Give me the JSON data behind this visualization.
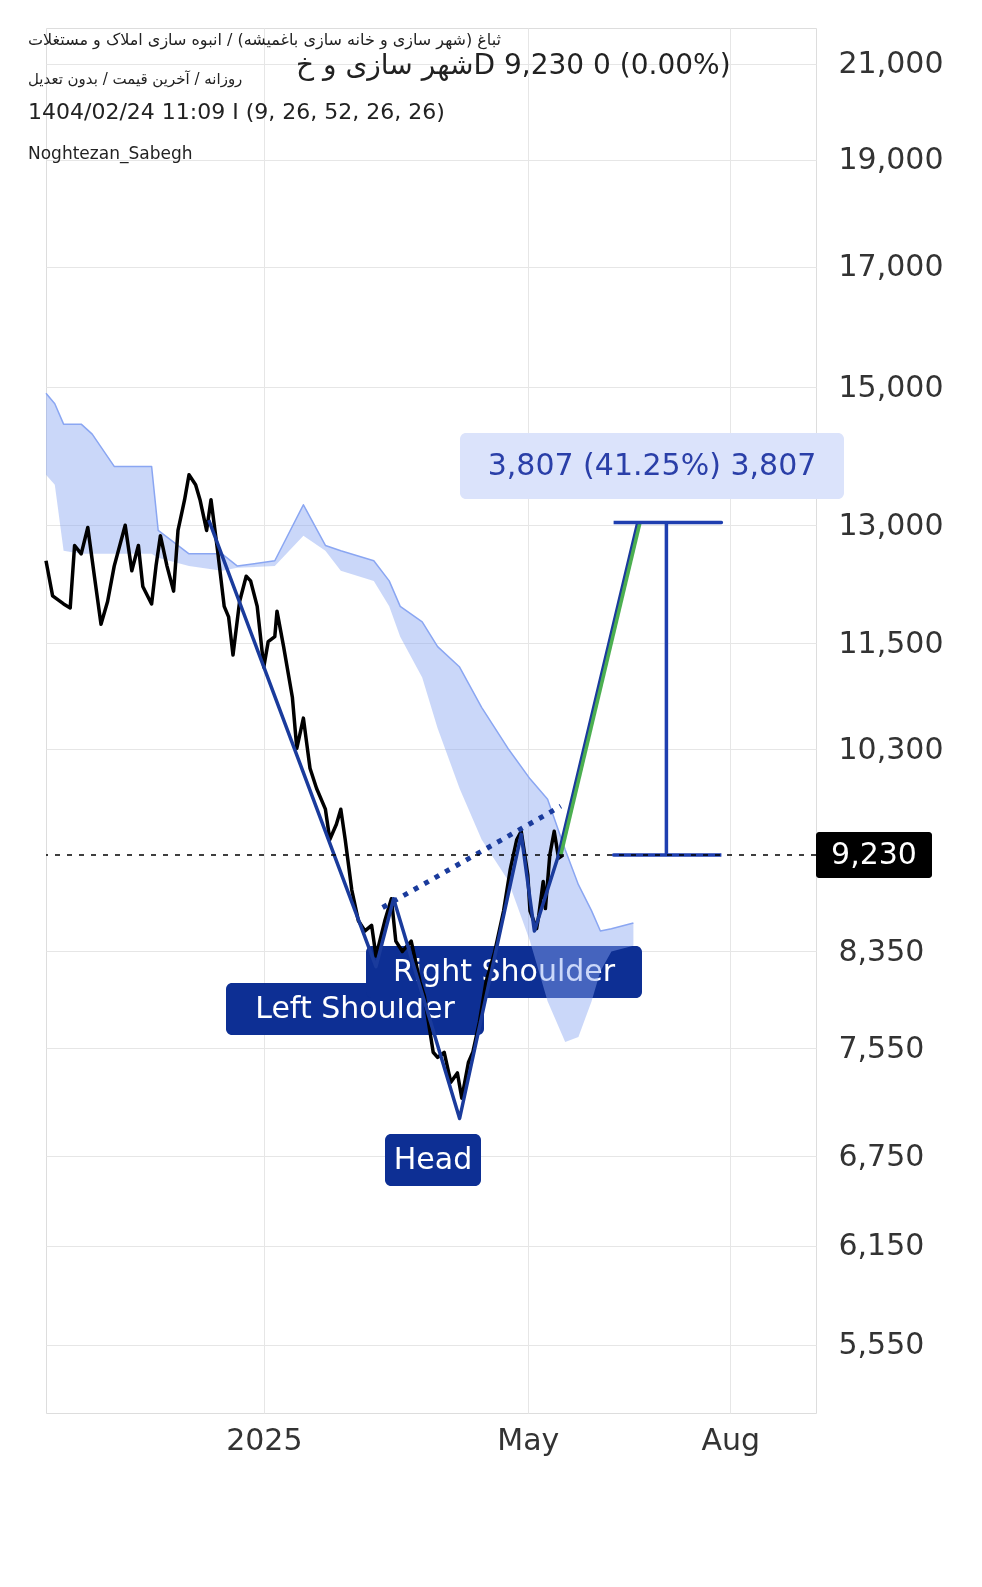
{
  "chart_data": {
    "type": "line",
    "title": "ثباغ (شهر سازی و خانه سازی باغمیشه) / انبوه سازی املاک و مستغلات",
    "subtitle": "شهر سازی و خD  9,230  0 (0.00%)",
    "annotations": [
      "روزانه / آخرین قیمت / بدون تعدیل",
      "1404/02/24 11:09 I (9, 26, 52, 26, 26)",
      "Noghtezan_Sabegh",
      "Left Shoulder",
      "Right Shoulder",
      "Head",
      "3,807 (41.25%) 3,807"
    ],
    "log": "y",
    "grid": true,
    "xlim": [
      "2024-09-24",
      "2025-09-09"
    ],
    "xticks": [
      "2025",
      {
        "value": "2025-05",
        "label": "May"
      },
      {
        "value": "2025-08",
        "label": "Aug"
      }
    ],
    "ylim": [
      5170,
      21790
    ],
    "yticks": [
      {
        "value": 5550,
        "label": "5,550"
      },
      {
        "value": 6150,
        "label": "6,150"
      },
      {
        "value": 6750,
        "label": "6,750"
      },
      {
        "value": 7550,
        "label": "7,550"
      },
      {
        "value": 8350,
        "label": "8,350"
      },
      {
        "value": 10300,
        "label": "10,300"
      },
      {
        "value": 11500,
        "label": "11,500"
      },
      {
        "value": 13000,
        "label": "13,000"
      },
      {
        "value": 15000,
        "label": "15,000"
      },
      {
        "value": 17000,
        "label": "17,000"
      },
      {
        "value": 19000,
        "label": "19,000"
      },
      {
        "value": 21000,
        "label": "21,000"
      }
    ],
    "ref_lines": [
      {
        "axis": "y",
        "value": 9230,
        "label": "9,230",
        "color": "#000000",
        "line_style": "dotted"
      }
    ],
    "series": [
      {
        "color": "#8aa6f2",
        "x": [
          "2024-09-24",
          "2024-09-28",
          "2024-10-02",
          "2024-10-10",
          "2024-10-15",
          "2024-10-25",
          "2024-11-11",
          "2024-11-14",
          "2024-11-28",
          "2024-12-13",
          "2024-12-20",
          "2025-01-06",
          "2025-01-19",
          "2025-01-29",
          "2025-02-05",
          "2025-02-20",
          "2025-02-27",
          "2025-03-04",
          "2025-03-14",
          "2025-03-21",
          "2025-03-31",
          "2025-04-10",
          "2025-04-22",
          "2025-05-02",
          "2025-05-10",
          "2025-05-18",
          "2025-05-24",
          "2025-05-30",
          "2025-06-03",
          "2025-06-08",
          "2025-06-18"
        ],
        "values": [
          14910,
          14750,
          14440,
          14440,
          14290,
          13820,
          13820,
          12930,
          12620,
          12620,
          12460,
          12530,
          13280,
          12730,
          12660,
          12530,
          12270,
          11950,
          11760,
          11460,
          11220,
          10760,
          10310,
          9990,
          9780,
          9280,
          8950,
          8710,
          8530,
          8550,
          8600
        ],
        "lower": [
          13700,
          13560,
          12660,
          12620,
          12620,
          12620,
          12620,
          12570,
          12460,
          12400,
          12440,
          12460,
          12860,
          12660,
          12400,
          12270,
          11950,
          11580,
          11100,
          10530,
          9890,
          9380,
          8990,
          8440,
          7930,
          7600,
          7640,
          7930,
          8180,
          8350,
          8400
        ],
        "upper": [
          14910,
          14750,
          14440,
          14440,
          14290,
          13820,
          13820,
          12930,
          12620,
          12620,
          12460,
          12530,
          13280,
          12730,
          12660,
          12530,
          12270,
          11950,
          11760,
          11460,
          11220,
          10760,
          10310,
          9990,
          9780,
          9280,
          8950,
          8710,
          8530,
          8550,
          8600
        ]
      },
      {
        "color": "#000000",
        "x": [
          "2024-09-24",
          "2024-09-27",
          "2024-10-02",
          "2024-10-05",
          "2024-10-07",
          "2024-10-10",
          "2024-10-13",
          "2024-10-16",
          "2024-10-19",
          "2024-10-22",
          "2024-10-25",
          "2024-10-30",
          "2024-11-02",
          "2024-11-05",
          "2024-11-07",
          "2024-11-11",
          "2024-11-13",
          "2024-11-15",
          "2024-11-18",
          "2024-11-21",
          "2024-11-23",
          "2024-11-26",
          "2024-11-28",
          "2024-12-01",
          "2024-12-03",
          "2024-12-06",
          "2024-12-08",
          "2024-12-11",
          "2024-12-14",
          "2024-12-16",
          "2024-12-18",
          "2024-12-21",
          "2024-12-24",
          "2024-12-26",
          "2024-12-29",
          "2025-01-01",
          "2025-01-03",
          "2025-01-06",
          "2025-01-07",
          "2025-01-10",
          "2025-01-14",
          "2025-01-16",
          "2025-01-19",
          "2025-01-22",
          "2025-01-25",
          "2025-01-29",
          "2025-01-31",
          "2025-02-03",
          "2025-02-05",
          "2025-02-07",
          "2025-02-10",
          "2025-02-13",
          "2025-02-16",
          "2025-02-19",
          "2025-02-21",
          "2025-02-25",
          "2025-02-28",
          "2025-03-02",
          "2025-03-05",
          "2025-03-09",
          "2025-03-13",
          "2025-03-15",
          "2025-03-19",
          "2025-03-21",
          "2025-03-24",
          "2025-03-27",
          "2025-03-30",
          "2025-04-01",
          "2025-04-04",
          "2025-04-06",
          "2025-04-09",
          "2025-04-12",
          "2025-04-16",
          "2025-04-20",
          "2025-04-23",
          "2025-04-26",
          "2025-04-28",
          "2025-05-01",
          "2025-05-02",
          "2025-05-05",
          "2025-05-06",
          "2025-05-08",
          "2025-05-09",
          "2025-05-11",
          "2025-05-13",
          "2025-05-15",
          "2025-05-17"
        ],
        "values": [
          12530,
          12080,
          11980,
          11930,
          12730,
          12620,
          12970,
          12330,
          11730,
          12010,
          12460,
          13000,
          12400,
          12730,
          12200,
          11980,
          12460,
          12860,
          12460,
          12140,
          12930,
          13350,
          13700,
          13560,
          13350,
          12930,
          13350,
          12660,
          11950,
          11820,
          11360,
          12010,
          12330,
          12270,
          11950,
          11220,
          11520,
          11580,
          11890,
          11460,
          10870,
          10310,
          10640,
          10100,
          9890,
          9680,
          9380,
          9530,
          9680,
          9380,
          8900,
          8620,
          8530,
          8580,
          8310,
          8620,
          8820,
          8440,
          8350,
          8440,
          8090,
          7970,
          7520,
          7480,
          7520,
          7290,
          7360,
          7170,
          7440,
          7520,
          7760,
          8090,
          8350,
          8710,
          9090,
          9380,
          9460,
          9040,
          8710,
          8550,
          8670,
          8980,
          8730,
          9230,
          9460,
          9200,
          9230
        ]
      },
      {
        "color": "#1a3b9c",
        "x": [
          "2024-12-07",
          "2025-02-21",
          "2025-03-01",
          "2025-03-31",
          "2025-04-28",
          "2025-05-04",
          "2025-05-15",
          "2025-06-20"
        ],
        "values": [
          13070,
          8220,
          8820,
          7020,
          9430,
          8530,
          9230,
          13037
        ]
      },
      {
        "color": "#4caf50",
        "x": [
          "2025-05-16",
          "2025-06-21"
        ],
        "values": [
          9230,
          13037
        ]
      },
      {
        "color": "#1a3b9c",
        "line_style": "dotted",
        "x": [
          "2025-02-24",
          "2025-05-16"
        ],
        "values": [
          8740,
          9710
        ]
      },
      {
        "color": "#1f3fb0",
        "x": [
          "2025-06-09",
          "2025-07-28",
          "2025-07-03",
          "2025-07-03",
          "2025-06-09",
          "2025-07-28"
        ],
        "values": [
          13037,
          13037,
          13037,
          9230,
          9230,
          9230
        ]
      }
    ]
  }
}
